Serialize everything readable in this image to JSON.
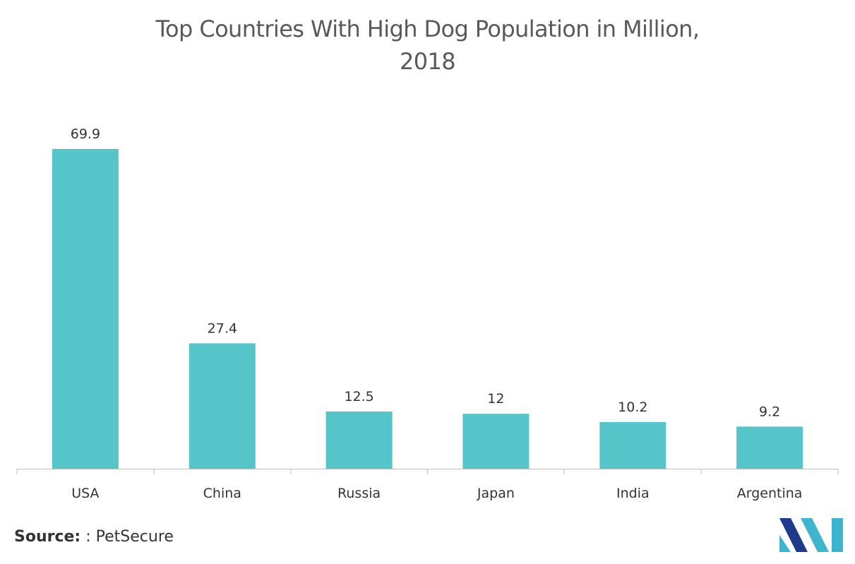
{
  "chart_data": {
    "type": "bar",
    "title_lines": [
      "Top Countries With High Dog Population in Million,",
      "2018"
    ],
    "categories": [
      "USA",
      "China",
      "Russia",
      "Japan",
      "India",
      "Argentina"
    ],
    "values": [
      69.9,
      27.4,
      12.5,
      12,
      10.2,
      9.2
    ],
    "data_labels": [
      "69.9",
      "27.4",
      "12.5",
      "12",
      "10.2",
      "9.2"
    ],
    "xlabel": "",
    "ylabel": "",
    "ylim": [
      0,
      70
    ],
    "grid": false,
    "legend": "none",
    "colors": {
      "bar": "#55C5C9",
      "axis": "#BFBFBF",
      "label": "#333333"
    }
  },
  "source": {
    "label": "Source:",
    "text": ": PetSecure"
  },
  "logo": {
    "name": "mordor-intelligence-logo",
    "colors": [
      "#1E3A8A",
      "#3FB4CF"
    ]
  }
}
